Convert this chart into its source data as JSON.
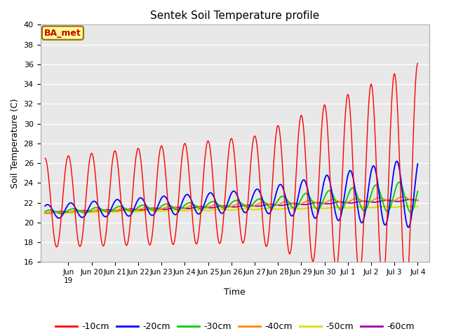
{
  "title": "Sentek Soil Temperature profile",
  "xlabel": "Time",
  "ylabel": "Soil Temperature (C)",
  "ylim": [
    16,
    40
  ],
  "yticks": [
    16,
    18,
    20,
    22,
    24,
    26,
    28,
    30,
    32,
    34,
    36,
    38,
    40
  ],
  "annotation_text": "BA_met",
  "annotation_color": "#cc0000",
  "annotation_bg": "#ffff99",
  "annotation_border": "#996600",
  "bg_color": "#e8e8e8",
  "line_colors": {
    "-10cm": "#ff0000",
    "-20cm": "#0000ff",
    "-30cm": "#00cc00",
    "-40cm": "#ff8800",
    "-50cm": "#dddd00",
    "-60cm": "#9900aa"
  },
  "legend_labels": [
    "-10cm",
    "-20cm",
    "-30cm",
    "-40cm",
    "-50cm",
    "-60cm"
  ],
  "figsize": [
    6.4,
    4.8
  ],
  "dpi": 100
}
